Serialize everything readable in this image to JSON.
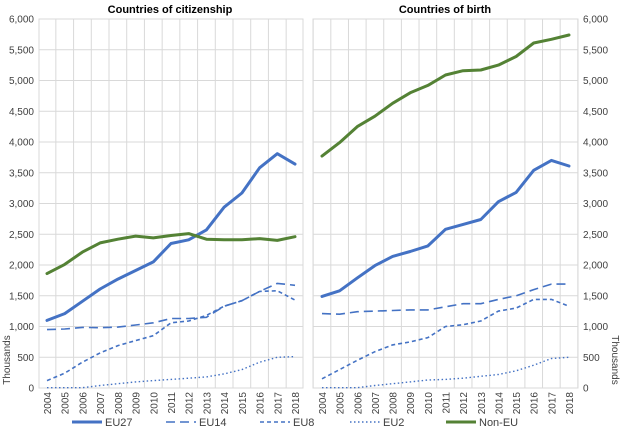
{
  "chart_data": [
    {
      "type": "line",
      "title": "Countries of citizenship",
      "xlabel": "",
      "ylabel": "Thousands",
      "x": [
        "2004",
        "2005",
        "2006",
        "2007",
        "2008",
        "2009",
        "2010",
        "2011",
        "2012",
        "2013",
        "2014",
        "2015",
        "2016",
        "2017",
        "2018"
      ],
      "ylim": [
        0,
        6000
      ],
      "yticks": [
        "0",
        "500",
        "1,000",
        "1,500",
        "2,000",
        "2,500",
        "3,000",
        "3,500",
        "4,000",
        "4,500",
        "5,000",
        "5,500",
        "6,000"
      ],
      "y_axis_side": "left",
      "grid": true,
      "series": [
        {
          "name": "EU27",
          "values": [
            1100,
            1210,
            1410,
            1610,
            1770,
            1910,
            2050,
            2350,
            2410,
            2570,
            2940,
            3170,
            3580,
            3810,
            3640
          ]
        },
        {
          "name": "EU14",
          "values": [
            950,
            960,
            985,
            980,
            990,
            1025,
            1060,
            1130,
            1130,
            1150,
            1330,
            1420,
            1570,
            1700,
            1670
          ]
        },
        {
          "name": "EU8",
          "values": [
            120,
            240,
            420,
            570,
            690,
            770,
            850,
            1060,
            1090,
            1180,
            1330,
            1420,
            1570,
            1580,
            1430
          ]
        },
        {
          "name": "EU2",
          "values": [
            5,
            5,
            5,
            40,
            70,
            100,
            120,
            140,
            160,
            180,
            230,
            300,
            420,
            500,
            510
          ]
        },
        {
          "name": "Non-EU",
          "values": [
            1860,
            2010,
            2210,
            2360,
            2420,
            2470,
            2440,
            2480,
            2510,
            2420,
            2410,
            2410,
            2430,
            2400,
            2460
          ]
        }
      ]
    },
    {
      "type": "line",
      "title": "Countries of birth",
      "xlabel": "",
      "ylabel": "Thousands",
      "x": [
        "2004",
        "2005",
        "2006",
        "2007",
        "2008",
        "2009",
        "2010",
        "2011",
        "2012",
        "2013",
        "2014",
        "2015",
        "2016",
        "2017",
        "2018"
      ],
      "ylim": [
        0,
        6000
      ],
      "yticks": [
        "0",
        "500",
        "1,000",
        "1,500",
        "2,000",
        "2,500",
        "3,000",
        "3,500",
        "4,000",
        "4,500",
        "5,000",
        "5,500",
        "6,000"
      ],
      "y_axis_side": "right",
      "grid": true,
      "series": [
        {
          "name": "EU27",
          "values": [
            1490,
            1580,
            1790,
            1990,
            2140,
            2220,
            2310,
            2580,
            2660,
            2740,
            3030,
            3180,
            3540,
            3700,
            3610
          ]
        },
        {
          "name": "EU14",
          "values": [
            1210,
            1200,
            1240,
            1250,
            1260,
            1270,
            1270,
            1320,
            1370,
            1370,
            1440,
            1500,
            1600,
            1690,
            1690
          ]
        },
        {
          "name": "EU8",
          "values": [
            150,
            300,
            450,
            590,
            700,
            750,
            820,
            1000,
            1030,
            1090,
            1250,
            1300,
            1440,
            1440,
            1330
          ]
        },
        {
          "name": "EU2",
          "values": [
            5,
            5,
            5,
            40,
            70,
            100,
            130,
            140,
            160,
            190,
            220,
            280,
            370,
            480,
            500
          ]
        },
        {
          "name": "Non-EU",
          "values": [
            3770,
            3990,
            4250,
            4420,
            4630,
            4800,
            4920,
            5090,
            5160,
            5170,
            5250,
            5390,
            5610,
            5670,
            5740
          ]
        }
      ]
    }
  ],
  "legend": {
    "placement": "bottom",
    "items": [
      {
        "name": "EU27",
        "color": "#4472C4",
        "style": "solid-thick"
      },
      {
        "name": "EU14",
        "color": "#4472C4",
        "style": "long-dash"
      },
      {
        "name": "EU8",
        "color": "#4472C4",
        "style": "dash"
      },
      {
        "name": "EU2",
        "color": "#4472C4",
        "style": "dot"
      },
      {
        "name": "Non-EU",
        "color": "#548235",
        "style": "solid-thick"
      }
    ]
  },
  "colors": {
    "eu": "#4472C4",
    "non_eu": "#548235",
    "grid": "#D9D9D9"
  }
}
